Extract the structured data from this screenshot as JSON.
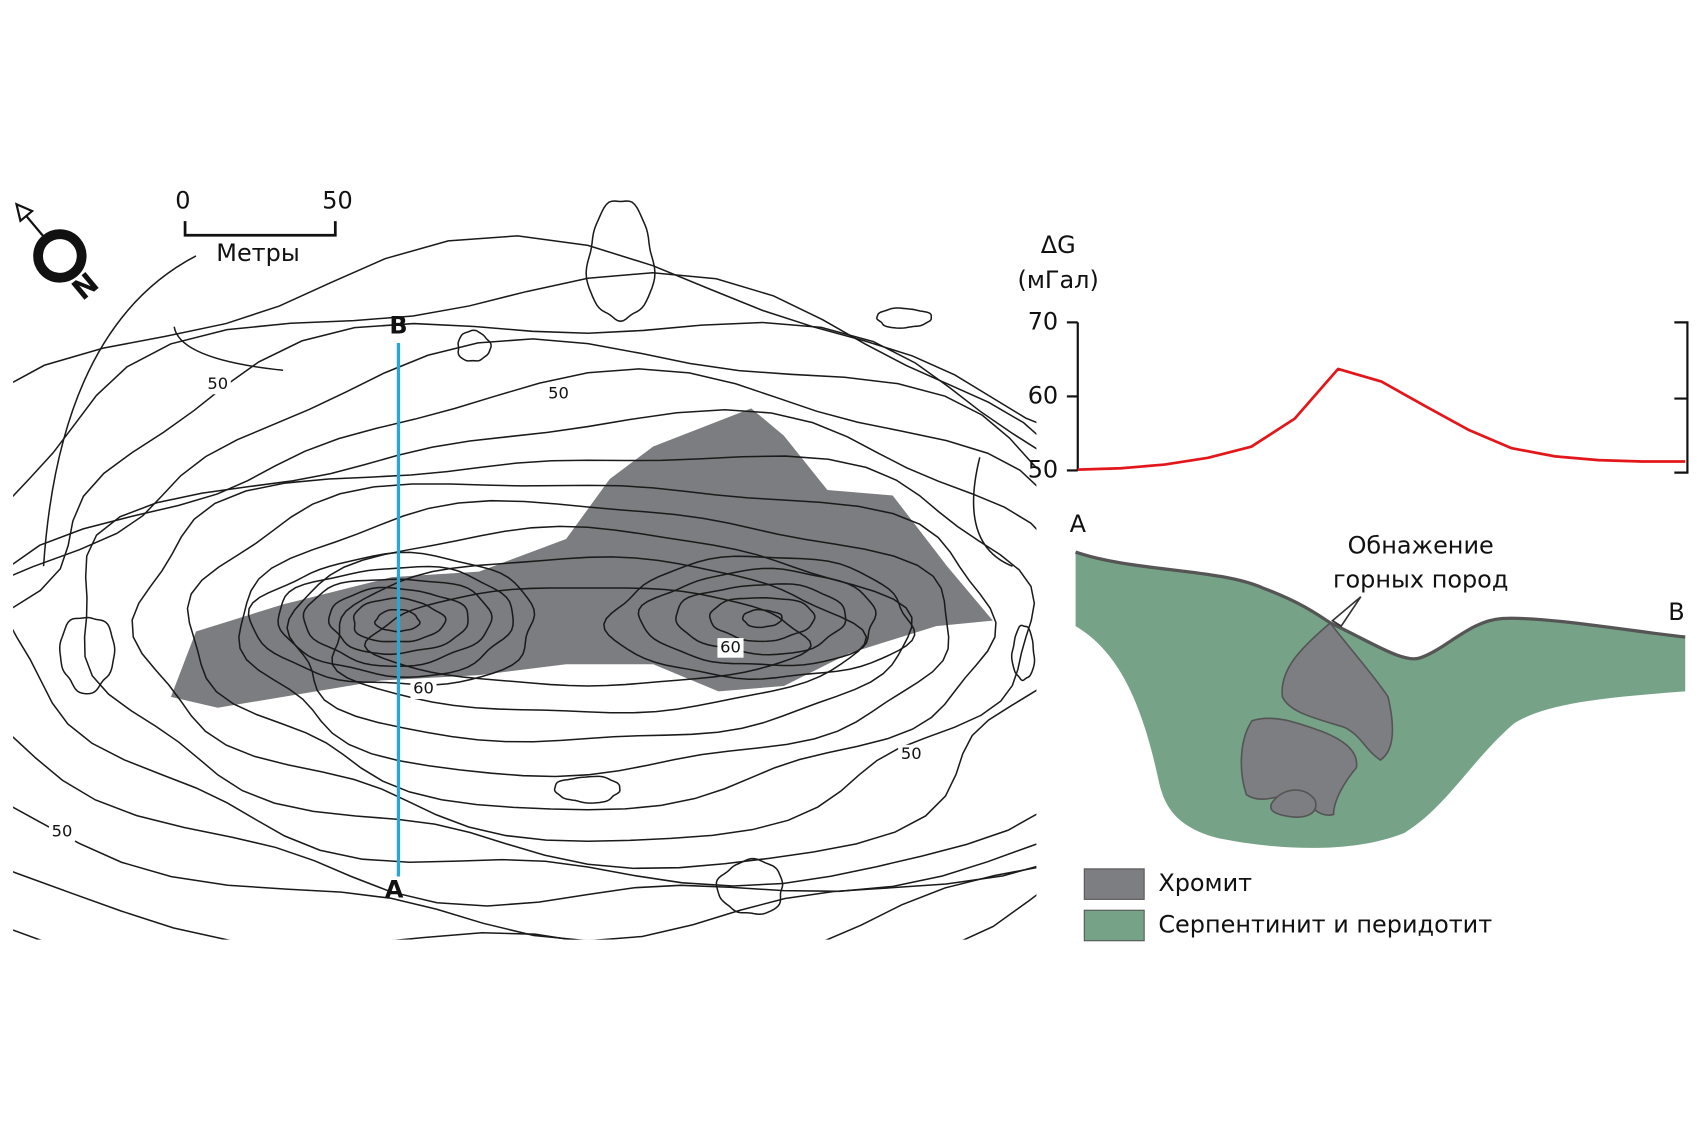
{
  "map": {
    "scale": {
      "start": "0",
      "end": "50",
      "unit": "Метры"
    },
    "compass": "N",
    "points": [
      "B",
      "A"
    ],
    "contour_labels": [
      "50",
      "50",
      "60",
      "60",
      "50",
      "50"
    ]
  },
  "profile": {
    "type": "line",
    "y_label": "ΔG",
    "y_unit": "(мГал)",
    "ylim": [
      50,
      70
    ],
    "yticks": [
      50,
      60,
      70
    ],
    "color": "#e3171b",
    "values": [
      50.1,
      50.3,
      50.8,
      51.7,
      53.2,
      57,
      63.7,
      62,
      58.7,
      55.5,
      53,
      51.9,
      51.4,
      51.2,
      51.2
    ]
  },
  "section": {
    "left": "A",
    "right": "B",
    "annotation": [
      "Обнажение",
      "горных пород"
    ],
    "legend": [
      {
        "name": "Хромит",
        "color": "#7d7e81"
      },
      {
        "name": "Серпентинит и перидотит",
        "color": "#76a387"
      }
    ]
  }
}
